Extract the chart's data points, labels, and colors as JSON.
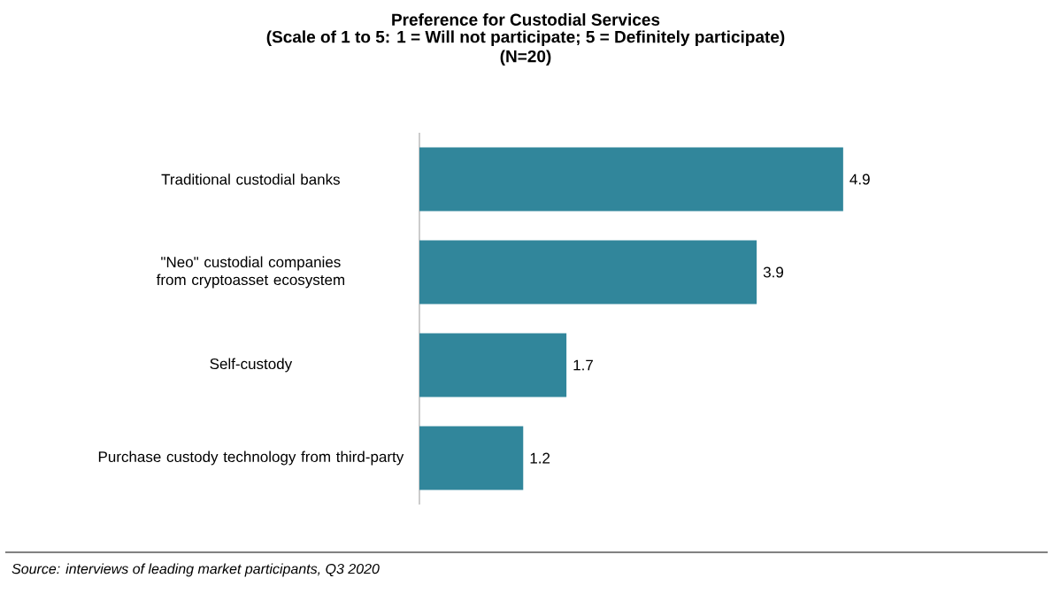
{
  "chart_data": {
    "type": "bar",
    "orientation": "horizontal",
    "title": "Preference for Custodial Services",
    "subtitle": "(Scale of 1 to 5: 1 = Will not participate; 5 = Definitely participate)\n(N=20)",
    "categories": [
      "Traditional custodial banks",
      "\"Neo\" custodial companies from cryptoasset ecosystem",
      "Self-custody",
      "Purchase custody technology from third-party"
    ],
    "values": [
      4.9,
      3.9,
      1.7,
      1.2
    ],
    "color": "#31869b",
    "data_labels": true,
    "annotations": [
      "Source: interviews of leading market participants, Q3 2020"
    ]
  }
}
